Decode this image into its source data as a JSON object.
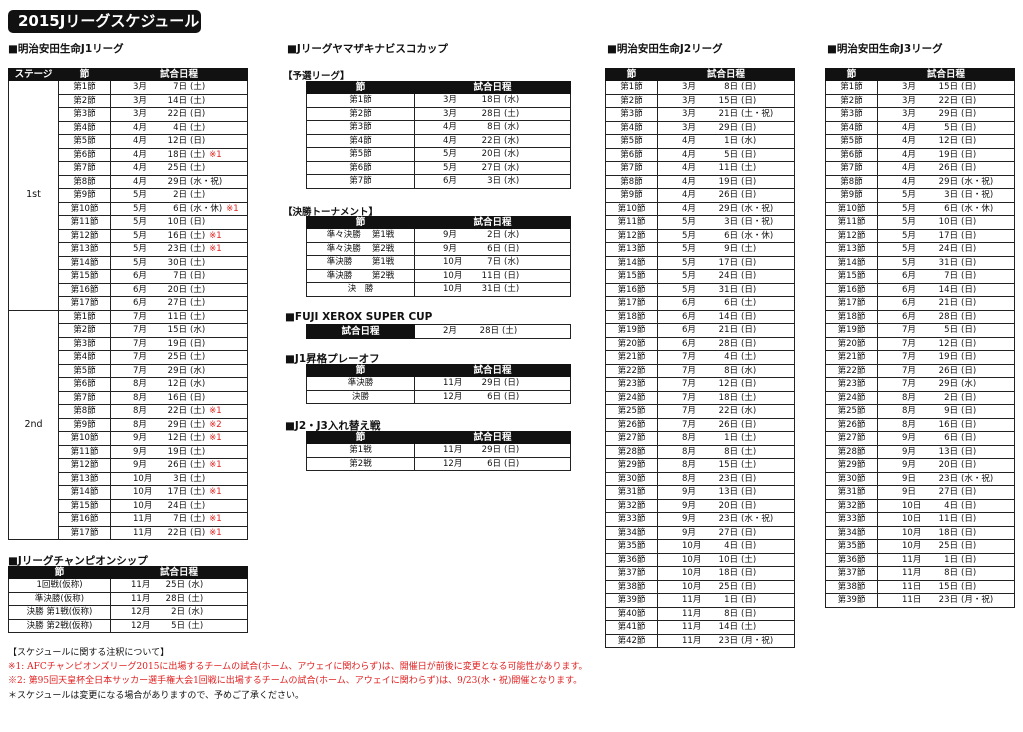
{
  "title": "2015Jリーグスケジュール",
  "colors": {
    "header_bg": "#111111",
    "note_red": "#e02020"
  },
  "j1": {
    "title": "■明治安田生命J1リーグ",
    "headers": [
      "ステージ",
      "節",
      "試合日程"
    ],
    "stages": [
      "1st",
      "2nd"
    ],
    "rows": [
      [
        "第1節",
        "3月",
        "7日",
        "(土)",
        ""
      ],
      [
        "第2節",
        "3月",
        "14日",
        "(土)",
        ""
      ],
      [
        "第3節",
        "3月",
        "22日",
        "(日)",
        ""
      ],
      [
        "第4節",
        "4月",
        "4日",
        "(土)",
        ""
      ],
      [
        "第5節",
        "4月",
        "12日",
        "(日)",
        ""
      ],
      [
        "第6節",
        "4月",
        "18日",
        "(土)",
        "※1"
      ],
      [
        "第7節",
        "4月",
        "25日",
        "(土)",
        ""
      ],
      [
        "第8節",
        "4月",
        "29日",
        "(水・祝)",
        ""
      ],
      [
        "第9節",
        "5月",
        "2日",
        "(土)",
        ""
      ],
      [
        "第10節",
        "5月",
        "6日",
        "(水・休)",
        "※1"
      ],
      [
        "第11節",
        "5月",
        "10日",
        "(日)",
        ""
      ],
      [
        "第12節",
        "5月",
        "16日",
        "(土)",
        "※1"
      ],
      [
        "第13節",
        "5月",
        "23日",
        "(土)",
        "※1"
      ],
      [
        "第14節",
        "5月",
        "30日",
        "(土)",
        ""
      ],
      [
        "第15節",
        "6月",
        "7日",
        "(日)",
        ""
      ],
      [
        "第16節",
        "6月",
        "20日",
        "(土)",
        ""
      ],
      [
        "第17節",
        "6月",
        "27日",
        "(土)",
        ""
      ],
      [
        "第1節",
        "7月",
        "11日",
        "(土)",
        ""
      ],
      [
        "第2節",
        "7月",
        "15日",
        "(水)",
        ""
      ],
      [
        "第3節",
        "7月",
        "19日",
        "(日)",
        ""
      ],
      [
        "第4節",
        "7月",
        "25日",
        "(土)",
        ""
      ],
      [
        "第5節",
        "7月",
        "29日",
        "(水)",
        ""
      ],
      [
        "第6節",
        "8月",
        "12日",
        "(水)",
        ""
      ],
      [
        "第7節",
        "8月",
        "16日",
        "(日)",
        ""
      ],
      [
        "第8節",
        "8月",
        "22日",
        "(土)",
        "※1"
      ],
      [
        "第9節",
        "8月",
        "29日",
        "(土)",
        "※2"
      ],
      [
        "第10節",
        "9月",
        "12日",
        "(土)",
        "※1"
      ],
      [
        "第11節",
        "9月",
        "19日",
        "(土)",
        ""
      ],
      [
        "第12節",
        "9月",
        "26日",
        "(土)",
        "※1"
      ],
      [
        "第13節",
        "10月",
        "3日",
        "(土)",
        ""
      ],
      [
        "第14節",
        "10月",
        "17日",
        "(土)",
        "※1"
      ],
      [
        "第15節",
        "10月",
        "24日",
        "(土)",
        ""
      ],
      [
        "第16節",
        "11月",
        "7日",
        "(土)",
        "※1"
      ],
      [
        "第17節",
        "11月",
        "22日",
        "(日)",
        "※1"
      ]
    ]
  },
  "cs": {
    "title": "■Jリーグチャンピオンシップ",
    "headers": [
      "節",
      "試合日程"
    ],
    "rows": [
      [
        "1回戦(仮称)",
        "11月",
        "25日",
        "(水)",
        ""
      ],
      [
        "準決勝(仮称)",
        "11月",
        "28日",
        "(土)",
        ""
      ],
      [
        "決勝 第1戦(仮称)",
        "12月",
        "2日",
        "(水)",
        ""
      ],
      [
        "決勝 第2戦(仮称)",
        "12月",
        "5日",
        "(土)",
        ""
      ]
    ]
  },
  "nabisco": {
    "title": "■Jリーグヤマザキナビスコカップ",
    "group": {
      "title": "【予選リーグ】",
      "headers": [
        "節",
        "試合日程"
      ],
      "rows": [
        [
          "第1節",
          "3月",
          "18日",
          "(水)",
          ""
        ],
        [
          "第2節",
          "3月",
          "28日",
          "(土)",
          ""
        ],
        [
          "第3節",
          "4月",
          "8日",
          "(水)",
          ""
        ],
        [
          "第4節",
          "4月",
          "22日",
          "(水)",
          ""
        ],
        [
          "第5節",
          "5月",
          "20日",
          "(水)",
          ""
        ],
        [
          "第6節",
          "5月",
          "27日",
          "(水)",
          ""
        ],
        [
          "第7節",
          "6月",
          "3日",
          "(水)",
          ""
        ]
      ]
    },
    "knockout": {
      "title": "【決勝トーナメント】",
      "headers": [
        "節",
        "試合日程"
      ],
      "rows": [
        [
          "準々決勝　 第1戦",
          "9月",
          "2日",
          "(水)",
          ""
        ],
        [
          "準々決勝　 第2戦",
          "9月",
          "6日",
          "(日)",
          ""
        ],
        [
          "準決勝　　 第1戦",
          "10月",
          "7日",
          "(水)",
          ""
        ],
        [
          "準決勝　　 第2戦",
          "10月",
          "11日",
          "(日)",
          ""
        ],
        [
          "決　勝",
          "10月",
          "31日",
          "(土)",
          ""
        ]
      ]
    }
  },
  "supercup": {
    "title": "■FUJI XEROX SUPER CUP",
    "label": "試合日程",
    "month": "2月",
    "day": "28日",
    "dow": "(土)"
  },
  "playoff": {
    "title": "■J1昇格プレーオフ",
    "headers": [
      "節",
      "試合日程"
    ],
    "rows": [
      [
        "準決勝",
        "11月",
        "29日",
        "(日)",
        ""
      ],
      [
        "決勝",
        "12月",
        "6日",
        "(日)",
        ""
      ]
    ]
  },
  "j2j3": {
    "title": "■J2・J3入れ替え戦",
    "headers": [
      "節",
      "試合日程"
    ],
    "rows": [
      [
        "第1戦",
        "11月",
        "29日",
        "(日)",
        ""
      ],
      [
        "第2戦",
        "12月",
        "6日",
        "(日)",
        ""
      ]
    ]
  },
  "j2": {
    "title": "■明治安田生命J2リーグ",
    "headers": [
      "節",
      "試合日程"
    ],
    "rows": [
      [
        "第1節",
        "3月",
        "8日",
        "(日)",
        ""
      ],
      [
        "第2節",
        "3月",
        "15日",
        "(日)",
        ""
      ],
      [
        "第3節",
        "3月",
        "21日",
        "(土・祝)",
        ""
      ],
      [
        "第4節",
        "3月",
        "29日",
        "(日)",
        ""
      ],
      [
        "第5節",
        "4月",
        "1日",
        "(水)",
        ""
      ],
      [
        "第6節",
        "4月",
        "5日",
        "(日)",
        ""
      ],
      [
        "第7節",
        "4月",
        "11日",
        "(土)",
        ""
      ],
      [
        "第8節",
        "4月",
        "19日",
        "(日)",
        ""
      ],
      [
        "第9節",
        "4月",
        "26日",
        "(日)",
        ""
      ],
      [
        "第10節",
        "4月",
        "29日",
        "(水・祝)",
        ""
      ],
      [
        "第11節",
        "5月",
        "3日",
        "(日・祝)",
        ""
      ],
      [
        "第12節",
        "5月",
        "6日",
        "(水・休)",
        ""
      ],
      [
        "第13節",
        "5月",
        "9日",
        "(土)",
        ""
      ],
      [
        "第14節",
        "5月",
        "17日",
        "(日)",
        ""
      ],
      [
        "第15節",
        "5月",
        "24日",
        "(日)",
        ""
      ],
      [
        "第16節",
        "5月",
        "31日",
        "(日)",
        ""
      ],
      [
        "第17節",
        "6月",
        "6日",
        "(土)",
        ""
      ],
      [
        "第18節",
        "6月",
        "14日",
        "(日)",
        ""
      ],
      [
        "第19節",
        "6月",
        "21日",
        "(日)",
        ""
      ],
      [
        "第20節",
        "6月",
        "28日",
        "(日)",
        ""
      ],
      [
        "第21節",
        "7月",
        "4日",
        "(土)",
        ""
      ],
      [
        "第22節",
        "7月",
        "8日",
        "(水)",
        ""
      ],
      [
        "第23節",
        "7月",
        "12日",
        "(日)",
        ""
      ],
      [
        "第24節",
        "7月",
        "18日",
        "(土)",
        ""
      ],
      [
        "第25節",
        "7月",
        "22日",
        "(水)",
        ""
      ],
      [
        "第26節",
        "7月",
        "26日",
        "(日)",
        ""
      ],
      [
        "第27節",
        "8月",
        "1日",
        "(土)",
        ""
      ],
      [
        "第28節",
        "8月",
        "8日",
        "(土)",
        ""
      ],
      [
        "第29節",
        "8月",
        "15日",
        "(土)",
        ""
      ],
      [
        "第30節",
        "8月",
        "23日",
        "(日)",
        ""
      ],
      [
        "第31節",
        "9月",
        "13日",
        "(日)",
        ""
      ],
      [
        "第32節",
        "9月",
        "20日",
        "(日)",
        ""
      ],
      [
        "第33節",
        "9月",
        "23日",
        "(水・祝)",
        ""
      ],
      [
        "第34節",
        "9月",
        "27日",
        "(日)",
        ""
      ],
      [
        "第35節",
        "10月",
        "4日",
        "(日)",
        ""
      ],
      [
        "第36節",
        "10月",
        "10日",
        "(土)",
        ""
      ],
      [
        "第37節",
        "10月",
        "18日",
        "(日)",
        ""
      ],
      [
        "第38節",
        "10月",
        "25日",
        "(日)",
        ""
      ],
      [
        "第39節",
        "11月",
        "1日",
        "(日)",
        ""
      ],
      [
        "第40節",
        "11月",
        "8日",
        "(日)",
        ""
      ],
      [
        "第41節",
        "11月",
        "14日",
        "(土)",
        ""
      ],
      [
        "第42節",
        "11月",
        "23日",
        "(月・祝)",
        ""
      ]
    ]
  },
  "j3": {
    "title": "■明治安田生命J3リーグ",
    "headers": [
      "節",
      "試合日程"
    ],
    "rows": [
      [
        "第1節",
        "3月",
        "15日",
        "(日)",
        ""
      ],
      [
        "第2節",
        "3月",
        "22日",
        "(日)",
        ""
      ],
      [
        "第3節",
        "3月",
        "29日",
        "(日)",
        ""
      ],
      [
        "第4節",
        "4月",
        "5日",
        "(日)",
        ""
      ],
      [
        "第5節",
        "4月",
        "12日",
        "(日)",
        ""
      ],
      [
        "第6節",
        "4月",
        "19日",
        "(日)",
        ""
      ],
      [
        "第7節",
        "4月",
        "26日",
        "(日)",
        ""
      ],
      [
        "第8節",
        "4月",
        "29日",
        "(水・祝)",
        ""
      ],
      [
        "第9節",
        "5月",
        "3日",
        "(日・祝)",
        ""
      ],
      [
        "第10節",
        "5月",
        "6日",
        "(水・休)",
        ""
      ],
      [
        "第11節",
        "5月",
        "10日",
        "(日)",
        ""
      ],
      [
        "第12節",
        "5月",
        "17日",
        "(日)",
        ""
      ],
      [
        "第13節",
        "5月",
        "24日",
        "(日)",
        ""
      ],
      [
        "第14節",
        "5月",
        "31日",
        "(日)",
        ""
      ],
      [
        "第15節",
        "6月",
        "7日",
        "(日)",
        ""
      ],
      [
        "第16節",
        "6月",
        "14日",
        "(日)",
        ""
      ],
      [
        "第17節",
        "6月",
        "21日",
        "(日)",
        ""
      ],
      [
        "第18節",
        "6月",
        "28日",
        "(日)",
        ""
      ],
      [
        "第19節",
        "7月",
        "5日",
        "(日)",
        ""
      ],
      [
        "第20節",
        "7月",
        "12日",
        "(日)",
        ""
      ],
      [
        "第21節",
        "7月",
        "19日",
        "(日)",
        ""
      ],
      [
        "第22節",
        "7月",
        "26日",
        "(日)",
        ""
      ],
      [
        "第23節",
        "7月",
        "29日",
        "(水)",
        ""
      ],
      [
        "第24節",
        "8月",
        "2日",
        "(日)",
        ""
      ],
      [
        "第25節",
        "8月",
        "9日",
        "(日)",
        ""
      ],
      [
        "第26節",
        "8月",
        "16日",
        "(日)",
        ""
      ],
      [
        "第27節",
        "9月",
        "6日",
        "(日)",
        ""
      ],
      [
        "第28節",
        "9月",
        "13日",
        "(日)",
        ""
      ],
      [
        "第29節",
        "9月",
        "20日",
        "(日)",
        ""
      ],
      [
        "第30節",
        "9日",
        "23日",
        "(水・祝)",
        ""
      ],
      [
        "第31節",
        "9日",
        "27日",
        "(日)",
        ""
      ],
      [
        "第32節",
        "10日",
        "4日",
        "(日)",
        ""
      ],
      [
        "第33節",
        "10日",
        "11日",
        "(日)",
        ""
      ],
      [
        "第34節",
        "10月",
        "18日",
        "(日)",
        ""
      ],
      [
        "第35節",
        "10月",
        "25日",
        "(日)",
        ""
      ],
      [
        "第36節",
        "11月",
        "1日",
        "(日)",
        ""
      ],
      [
        "第37節",
        "11月",
        "8日",
        "(日)",
        ""
      ],
      [
        "第38節",
        "11日",
        "15日",
        "(日)",
        ""
      ],
      [
        "第39節",
        "11日",
        "23日",
        "(月・祝)",
        ""
      ]
    ]
  },
  "notes": {
    "heading": "【スケジュールに関する注釈について】",
    "note1": "※1: AFCチャンピオンズリーグ2015に出場するチームの試合(ホーム、アウェイに関わらず)は、開催日が前後に変更となる可能性があります。",
    "note2": "※2: 第95回天皇杯全日本サッカー選手権大会1回戦に出場するチームの試合(ホーム、アウェイに関わらず)は、9/23(水・祝)開催となります。",
    "note3": "＊スケジュールは変更になる場合がありますので、予めご了承ください。"
  }
}
